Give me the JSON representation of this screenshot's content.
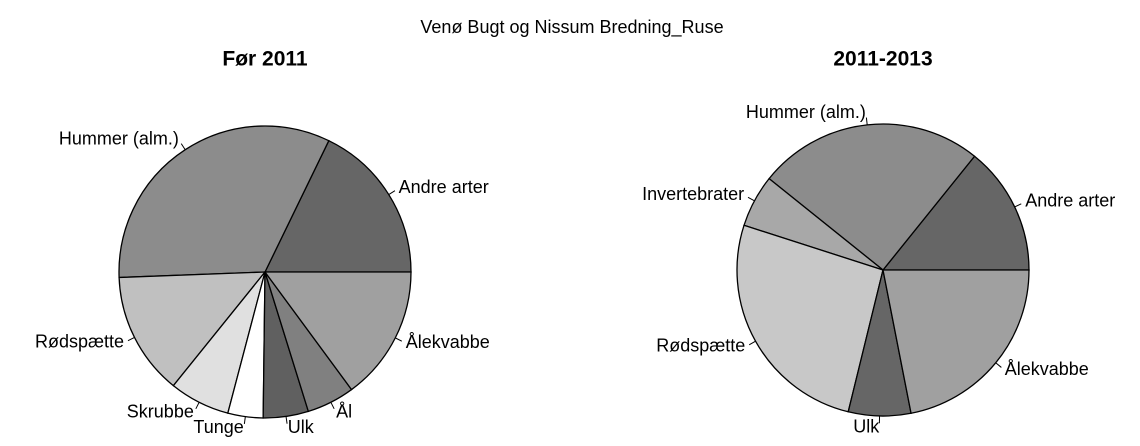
{
  "title": "Venø Bugt og Nissum Bredning_Ruse",
  "chart_data": [
    {
      "type": "pie",
      "title": "Før 2011",
      "categories": [
        "Andre arter",
        "Hummer (alm.)",
        "Rødspætte",
        "Skrubbe",
        "Tunge",
        "Ulk",
        "Ål",
        "Ålekvabbe"
      ],
      "values": [
        17.8,
        32.8,
        13.6,
        6.7,
        3.9,
        5.0,
        5.3,
        14.9
      ],
      "colors": [
        "#666666",
        "#8c8c8c",
        "#c0c0c0",
        "#e0e0e0",
        "#ffffff",
        "#606060",
        "#808080",
        "#a0a0a0"
      ]
    },
    {
      "type": "pie",
      "title": "2011-2013",
      "categories": [
        "Andre arter",
        "Hummer (alm.)",
        "Invertebrater",
        "Rødspætte",
        "Ulk",
        "Ålekvabbe"
      ],
      "values": [
        14.2,
        25.0,
        5.8,
        26.1,
        6.9,
        21.9
      ],
      "colors": [
        "#666666",
        "#8c8c8c",
        "#a8a8a8",
        "#c8c8c8",
        "#666666",
        "#a0a0a0"
      ]
    }
  ]
}
